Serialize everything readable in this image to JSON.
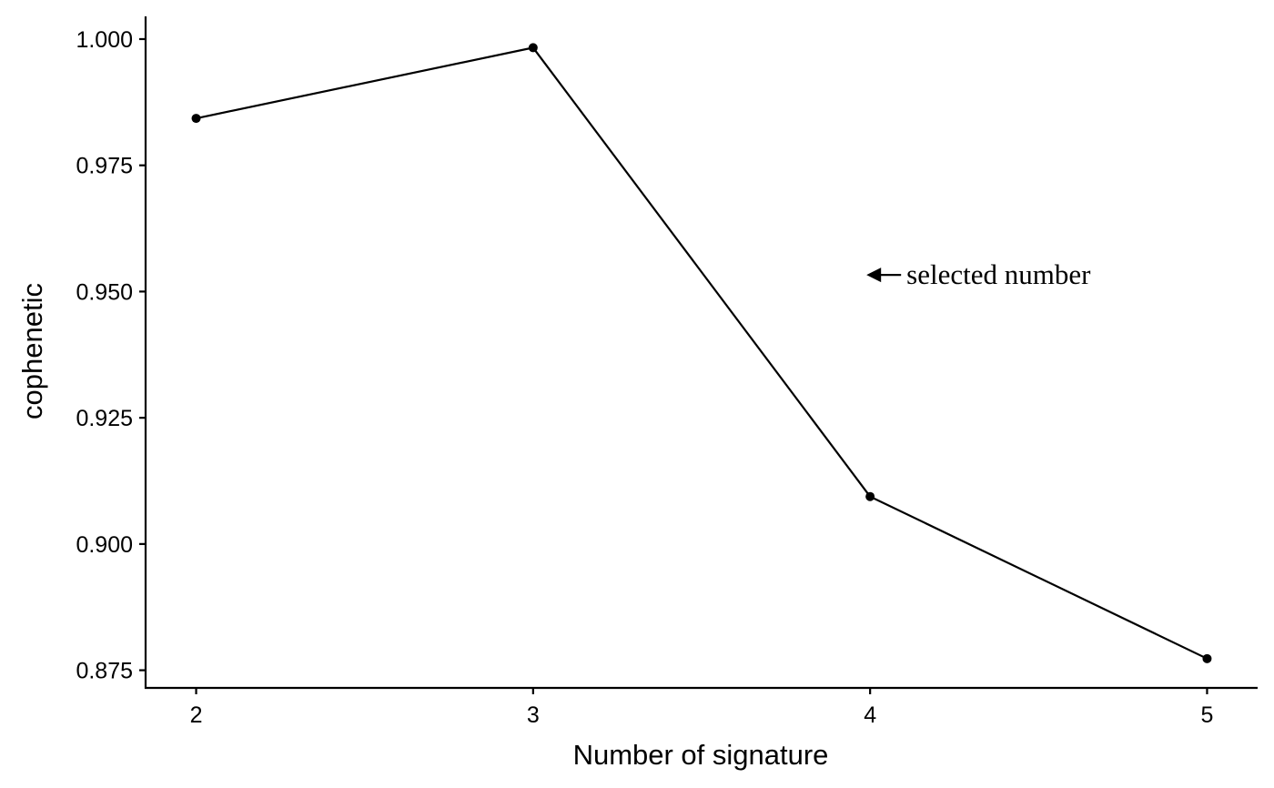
{
  "chart_data": {
    "type": "line",
    "title": "",
    "xlabel": "Number of signature",
    "ylabel": "cophenetic",
    "x": [
      2,
      3,
      4,
      5
    ],
    "x_tick_labels": [
      "2",
      "3",
      "4",
      "5"
    ],
    "y": [
      0.9843,
      0.9983,
      0.9094,
      0.8773
    ],
    "y_ticks": [
      0.875,
      0.9,
      0.925,
      0.95,
      0.975,
      1.0
    ],
    "y_tick_labels": [
      "0.875",
      "0.900",
      "0.925",
      "0.950",
      "0.975",
      "1.000"
    ],
    "xlim": [
      1.85,
      5.15
    ],
    "ylim": [
      0.8715,
      1.0045
    ],
    "grid": false,
    "line_color": "#000000",
    "annotation": {
      "text": "selected number",
      "x": 4.1,
      "y": 0.9533,
      "arrow": "left"
    }
  }
}
